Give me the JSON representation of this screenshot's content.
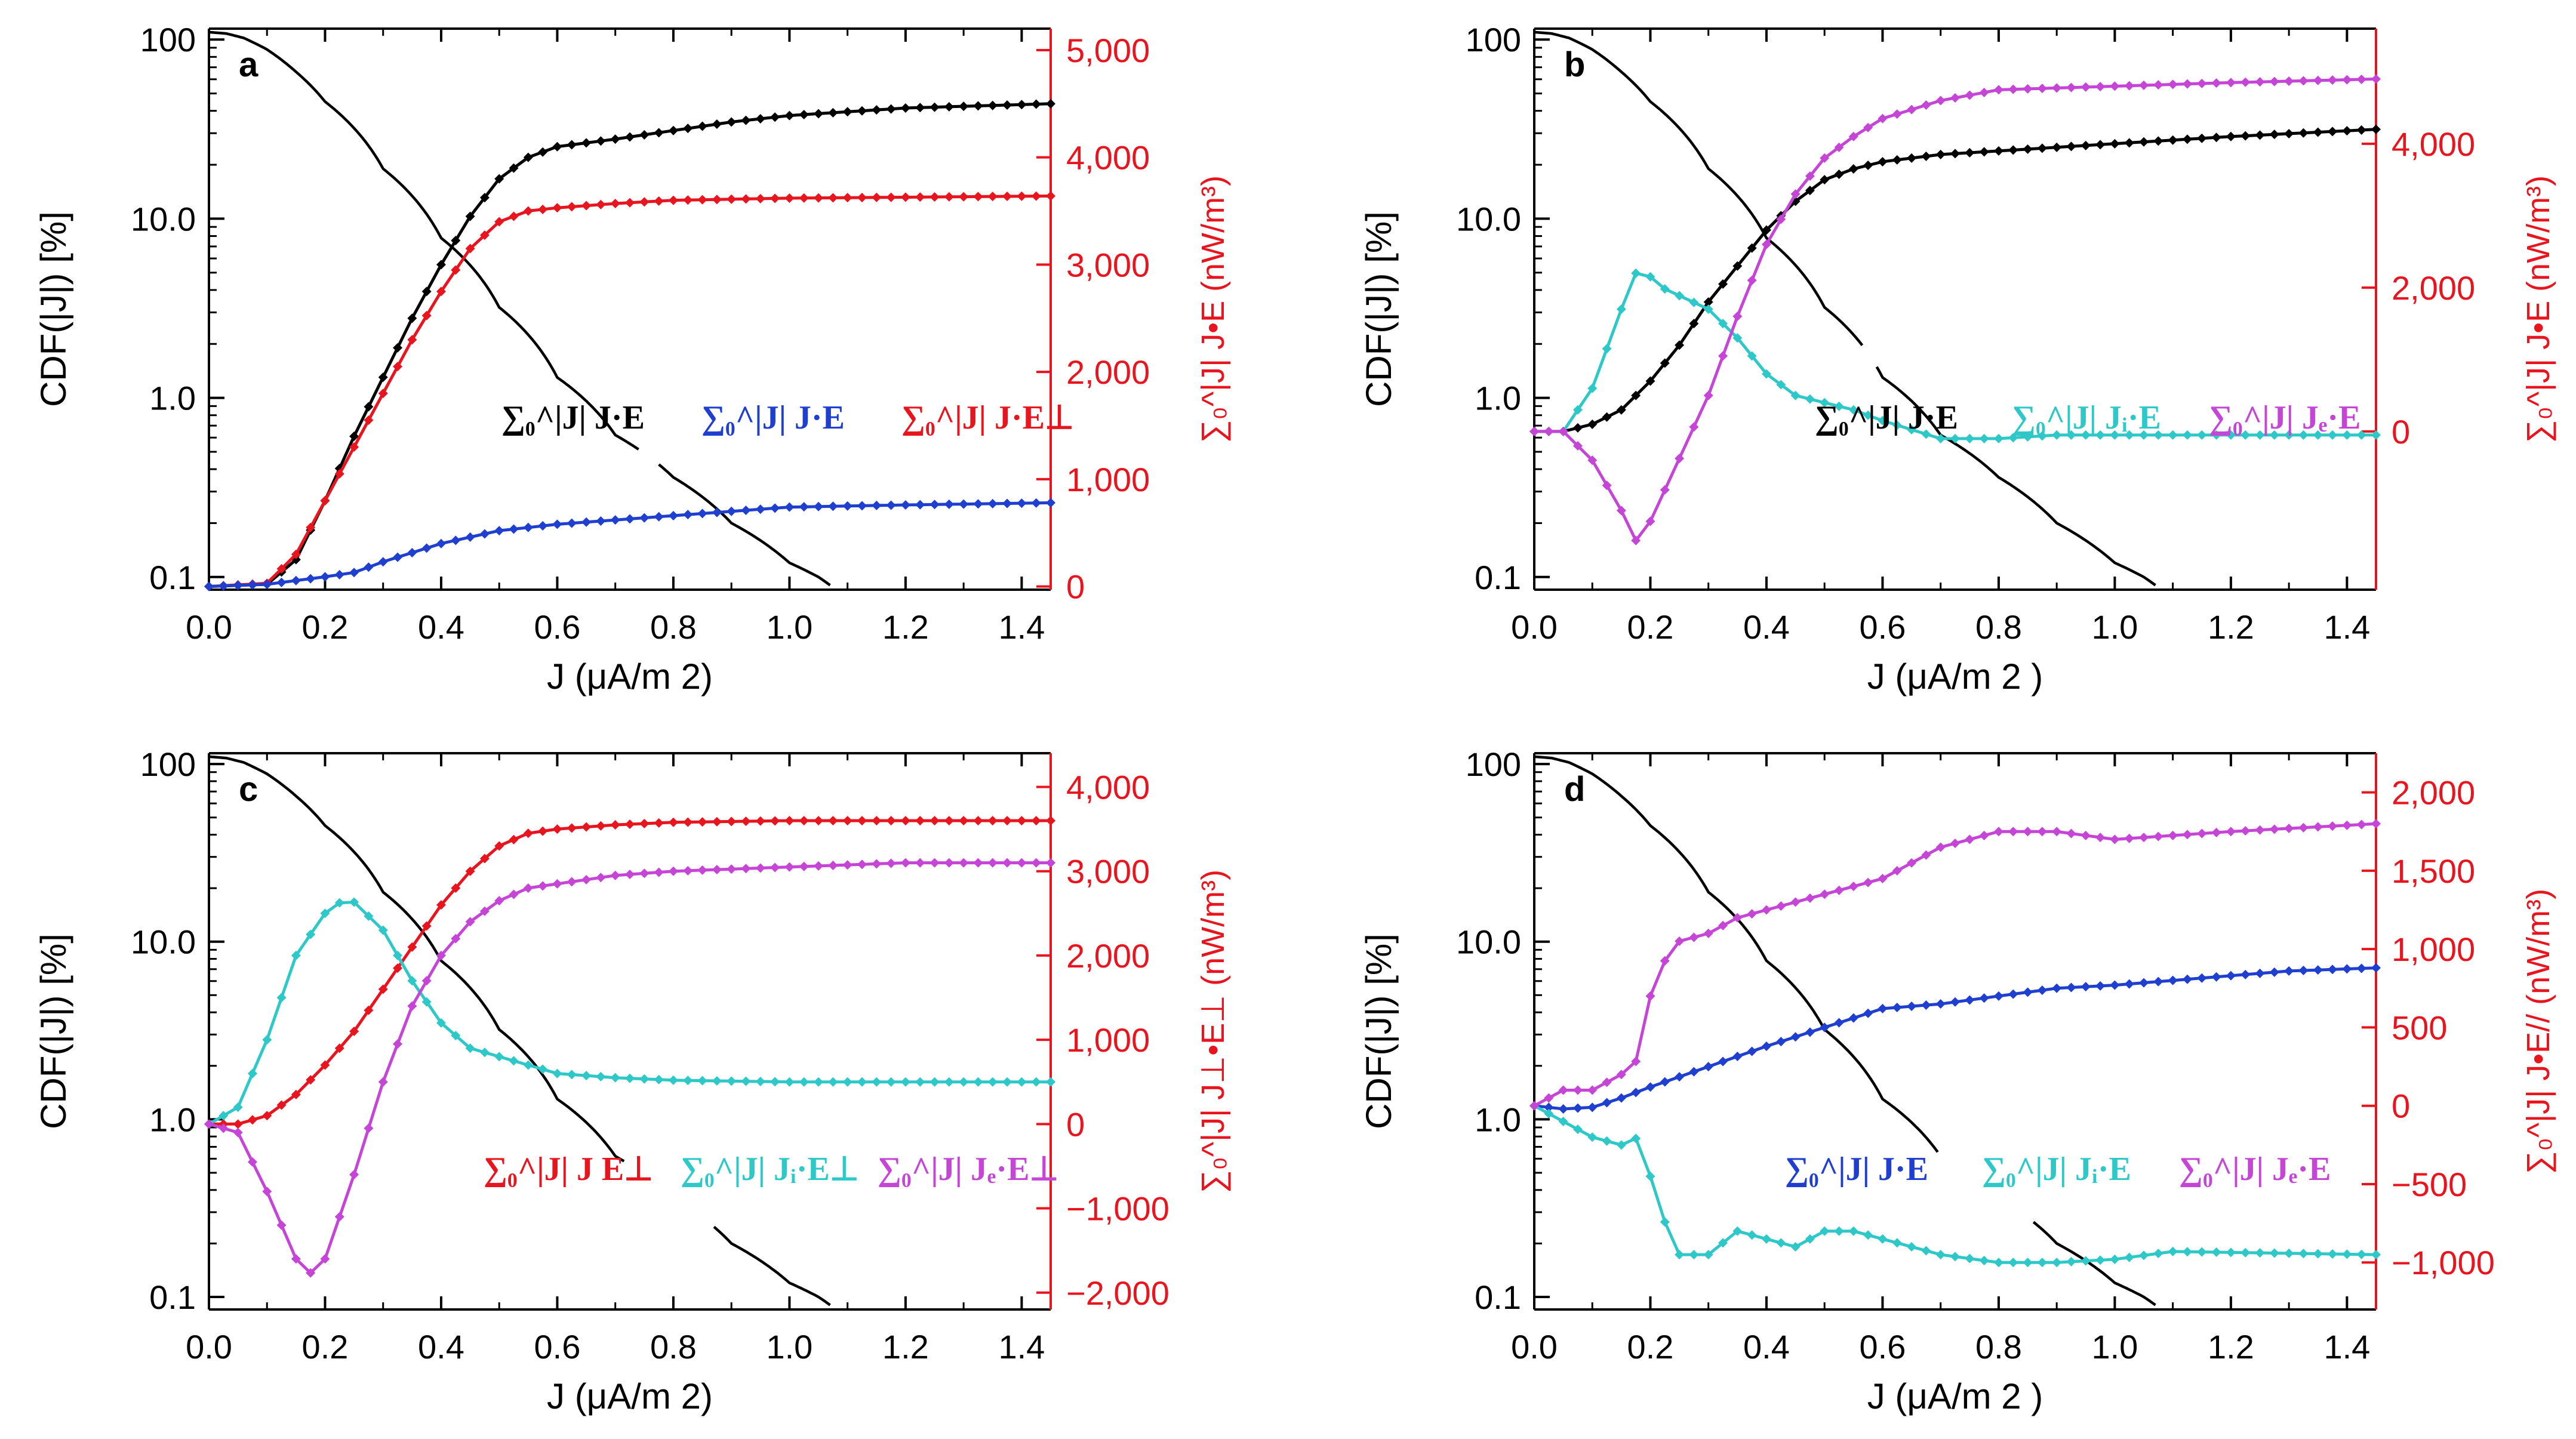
{
  "figure": {
    "background": "#ffffff"
  },
  "colors": {
    "black": "#000000",
    "blue": "#1f3fd0",
    "red": "#e8141e",
    "cyan": "#2ec8c8",
    "magenta": "#c546d6"
  },
  "chart_data": [
    {
      "panel": "a",
      "type": "line",
      "xlabel": "J (μA/m 2)",
      "ylabel": "CDF(|J|) [%]",
      "ylabel_right": "∑₀^|J| J•E  (nW/m³)",
      "xlim": [
        0,
        1.45
      ],
      "ylim_left": [
        0.085,
        115
      ],
      "ylim_right": [
        -30,
        5200
      ],
      "xticks": [
        "0.0",
        "0.2",
        "0.4",
        "0.6",
        "0.8",
        "1.0",
        "1.2",
        "1.4"
      ],
      "yticks_left": [
        "100",
        "10.0",
        "1.0",
        "0.1"
      ],
      "yticks_right": [
        "5,000",
        "4,000",
        "3,000",
        "2,000",
        "1,000",
        "0"
      ],
      "legend": [
        {
          "label": "∑₀^|J| J·E",
          "color": "black"
        },
        {
          "label": "∑₀^|J| J·E",
          "color": "blue"
        },
        {
          "label": "∑₀^|J| J·E⊥",
          "color": "red"
        }
      ],
      "series": [
        {
          "name": "CDF(|J|)",
          "color": "black",
          "axis": "left",
          "markers": false,
          "x": [
            0,
            0.03,
            0.06,
            0.1,
            0.15,
            0.2,
            0.3,
            0.4,
            0.5,
            0.6,
            0.7,
            0.8,
            0.9,
            1.0,
            1.05,
            1.07
          ],
          "y": [
            110,
            108,
            102,
            88,
            66,
            45,
            19,
            7.8,
            3.2,
            1.3,
            0.62,
            0.36,
            0.2,
            0.12,
            0.1,
            0.09
          ],
          "gaps": [
            [
              0.745,
              0.775
            ]
          ]
        },
        {
          "name": "∑₀^|J| J·E",
          "color": "black",
          "axis": "right",
          "markers": true,
          "x": [
            0,
            0.1,
            0.15,
            0.2,
            0.25,
            0.3,
            0.35,
            0.4,
            0.45,
            0.5,
            0.55,
            0.6,
            0.7,
            0.8,
            0.9,
            1.0,
            1.2,
            1.45
          ],
          "y": [
            0,
            20,
            250,
            800,
            1400,
            1950,
            2500,
            3000,
            3450,
            3800,
            4000,
            4100,
            4170,
            4250,
            4330,
            4390,
            4460,
            4500
          ]
        },
        {
          "name": "∑₀^|J| J·E⊥",
          "color": "red",
          "axis": "right",
          "markers": true,
          "x": [
            0,
            0.1,
            0.15,
            0.2,
            0.25,
            0.3,
            0.35,
            0.4,
            0.45,
            0.5,
            0.55,
            0.6,
            0.7,
            0.8,
            1.0,
            1.45
          ],
          "y": [
            0,
            30,
            300,
            800,
            1300,
            1800,
            2300,
            2750,
            3150,
            3400,
            3500,
            3530,
            3570,
            3600,
            3620,
            3640
          ]
        },
        {
          "name": "∑₀^|J| J·E (blue)",
          "color": "blue",
          "axis": "right",
          "markers": true,
          "x": [
            0,
            0.1,
            0.2,
            0.25,
            0.3,
            0.4,
            0.5,
            0.6,
            0.7,
            0.8,
            0.9,
            1.0,
            1.2,
            1.45
          ],
          "y": [
            0,
            20,
            90,
            130,
            230,
            400,
            520,
            580,
            620,
            660,
            700,
            740,
            760,
            780
          ]
        }
      ]
    },
    {
      "panel": "b",
      "type": "line",
      "xlabel": "J (μA/m 2 )",
      "ylabel": "CDF(|J|) [%]",
      "ylabel_right": "∑₀^|J| J•E  (nW/m³)",
      "xlim": [
        0,
        1.45
      ],
      "ylim_left": [
        0.085,
        115
      ],
      "ylim_right": [
        -2200,
        5600
      ],
      "xticks": [
        "0.0",
        "0.2",
        "0.4",
        "0.6",
        "0.8",
        "1.0",
        "1.2",
        "1.4"
      ],
      "yticks_left": [
        "100",
        "10.0",
        "1.0",
        "0.1"
      ],
      "yticks_right": [
        "4,000",
        "2,000",
        "0"
      ],
      "legend": [
        {
          "label": "∑₀^|J| J·E",
          "color": "black"
        },
        {
          "label": "∑₀^|J| Jᵢ·E",
          "color": "cyan"
        },
        {
          "label": "∑₀^|J| Jₑ·E",
          "color": "magenta"
        }
      ],
      "series": [
        {
          "name": "CDF(|J|)",
          "color": "black",
          "axis": "left",
          "markers": false,
          "x": [
            0,
            0.03,
            0.06,
            0.1,
            0.15,
            0.2,
            0.3,
            0.4,
            0.5,
            0.6,
            0.7,
            0.8,
            0.9,
            1.0,
            1.05,
            1.07
          ],
          "y": [
            110,
            108,
            102,
            88,
            66,
            45,
            19,
            7.8,
            3.2,
            1.3,
            0.62,
            0.36,
            0.2,
            0.12,
            0.1,
            0.09
          ],
          "gaps": [
            [
              0.57,
              0.59
            ]
          ]
        },
        {
          "name": "∑₀^|J| J·E",
          "color": "black",
          "axis": "right",
          "markers": true,
          "x": [
            0,
            0.05,
            0.1,
            0.15,
            0.2,
            0.25,
            0.3,
            0.35,
            0.4,
            0.45,
            0.5,
            0.55,
            0.6,
            0.7,
            0.8,
            1.0,
            1.2,
            1.45
          ],
          "y": [
            0,
            0,
            100,
            300,
            700,
            1200,
            1800,
            2300,
            2800,
            3200,
            3500,
            3650,
            3750,
            3850,
            3900,
            4000,
            4100,
            4200
          ]
        },
        {
          "name": "∑₀^|J| Jᵢ·E",
          "color": "cyan",
          "axis": "right",
          "markers": true,
          "x": [
            0,
            0.05,
            0.1,
            0.15,
            0.18,
            0.22,
            0.3,
            0.35,
            0.4,
            0.45,
            0.5,
            0.55,
            0.6,
            0.7,
            0.8,
            0.9,
            1.0,
            1.45
          ],
          "y": [
            0,
            0,
            600,
            1700,
            2300,
            2000,
            1700,
            1300,
            800,
            500,
            400,
            300,
            150,
            -100,
            -100,
            -50,
            -50,
            -50
          ]
        },
        {
          "name": "∑₀^|J| Jₑ·E",
          "color": "magenta",
          "axis": "right",
          "markers": true,
          "x": [
            0,
            0.05,
            0.1,
            0.15,
            0.18,
            0.22,
            0.3,
            0.35,
            0.4,
            0.45,
            0.5,
            0.55,
            0.6,
            0.7,
            0.8,
            1.0,
            1.2,
            1.45
          ],
          "y": [
            0,
            0,
            -400,
            -1100,
            -1600,
            -900,
            500,
            1600,
            2600,
            3300,
            3800,
            4100,
            4350,
            4600,
            4750,
            4800,
            4850,
            4900
          ]
        }
      ]
    },
    {
      "panel": "c",
      "type": "line",
      "xlabel": "J (μA/m 2)",
      "ylabel": "CDF(|J|) [%]",
      "ylabel_right": "∑₀^|J| J⊥•E⊥ (nW/m³)",
      "xlim": [
        0,
        1.45
      ],
      "ylim_left": [
        0.085,
        115
      ],
      "ylim_right": [
        -2200,
        4400
      ],
      "xticks": [
        "0.0",
        "0.2",
        "0.4",
        "0.6",
        "0.8",
        "1.0",
        "1.2",
        "1.4"
      ],
      "yticks_left": [
        "100",
        "10.0",
        "1.0",
        "0.1"
      ],
      "yticks_right": [
        "4,000",
        "3,000",
        "2,000",
        "1,000",
        "0",
        "−1,000",
        "−2,000"
      ],
      "legend": [
        {
          "label": "∑₀^|J| J E⊥",
          "color": "red"
        },
        {
          "label": "∑₀^|J| Jᵢ·E⊥",
          "color": "cyan"
        },
        {
          "label": "∑₀^|J| Jₑ·E⊥",
          "color": "magenta"
        }
      ],
      "series": [
        {
          "name": "CDF(|J|)",
          "color": "black",
          "axis": "left",
          "markers": false,
          "x": [
            0,
            0.03,
            0.06,
            0.1,
            0.15,
            0.2,
            0.3,
            0.4,
            0.5,
            0.6,
            0.7,
            0.8,
            0.9,
            1.0,
            1.05,
            1.07
          ],
          "y": [
            110,
            108,
            102,
            88,
            66,
            45,
            19,
            7.8,
            3.2,
            1.3,
            0.62,
            0.36,
            0.2,
            0.12,
            0.1,
            0.09
          ],
          "gaps": [
            [
              0.72,
              0.87
            ]
          ]
        },
        {
          "name": "∑₀^|J| J E⊥",
          "color": "red",
          "axis": "right",
          "markers": true,
          "x": [
            0,
            0.05,
            0.1,
            0.15,
            0.2,
            0.25,
            0.3,
            0.35,
            0.4,
            0.45,
            0.5,
            0.55,
            0.6,
            0.7,
            0.8,
            1.0,
            1.2,
            1.45
          ],
          "y": [
            0,
            0,
            100,
            350,
            700,
            1100,
            1600,
            2100,
            2600,
            3000,
            3300,
            3450,
            3500,
            3550,
            3580,
            3600,
            3600,
            3600
          ]
        },
        {
          "name": "∑₀^|J| Jᵢ·E⊥",
          "color": "cyan",
          "axis": "right",
          "markers": true,
          "x": [
            0,
            0.05,
            0.1,
            0.15,
            0.2,
            0.24,
            0.3,
            0.35,
            0.4,
            0.45,
            0.5,
            0.55,
            0.6,
            0.7,
            0.8,
            1.0,
            1.2,
            1.45
          ],
          "y": [
            0,
            200,
            1000,
            2000,
            2500,
            2700,
            2300,
            1700,
            1200,
            900,
            800,
            700,
            600,
            550,
            520,
            500,
            500,
            500
          ]
        },
        {
          "name": "∑₀^|J| Jₑ·E⊥",
          "color": "magenta",
          "axis": "right",
          "markers": true,
          "x": [
            0,
            0.05,
            0.1,
            0.15,
            0.17,
            0.2,
            0.25,
            0.3,
            0.35,
            0.4,
            0.45,
            0.5,
            0.55,
            0.6,
            0.7,
            0.8,
            1.0,
            1.2,
            1.45
          ],
          "y": [
            0,
            -100,
            -800,
            -1600,
            -1800,
            -1600,
            -600,
            500,
            1400,
            2000,
            2400,
            2650,
            2800,
            2850,
            2950,
            3000,
            3050,
            3100,
            3100
          ]
        }
      ]
    },
    {
      "panel": "d",
      "type": "line",
      "xlabel": "J (μA/m 2 )",
      "ylabel": "CDF(|J|) [%]",
      "ylabel_right": "∑₀^|J| J•E// (nW/m³)",
      "xlim": [
        0,
        1.45
      ],
      "ylim_left": [
        0.085,
        115
      ],
      "ylim_right": [
        -1300,
        2250
      ],
      "xticks": [
        "0.0",
        "0.2",
        "0.4",
        "0.6",
        "0.8",
        "1.0",
        "1.2",
        "1.4"
      ],
      "yticks_left": [
        "100",
        "10.0",
        "1.0",
        "0.1"
      ],
      "yticks_right": [
        "2,000",
        "1,500",
        "1,000",
        "500",
        "0",
        "−500",
        "−1,000"
      ],
      "legend": [
        {
          "label": "∑₀^|J| J·E",
          "color": "blue"
        },
        {
          "label": "∑₀^|J| Jᵢ·E",
          "color": "cyan"
        },
        {
          "label": "∑₀^|J| Jₑ·E",
          "color": "magenta"
        }
      ],
      "series": [
        {
          "name": "CDF(|J|)",
          "color": "black",
          "axis": "left",
          "markers": false,
          "x": [
            0,
            0.03,
            0.06,
            0.1,
            0.15,
            0.2,
            0.3,
            0.4,
            0.5,
            0.6,
            0.7,
            0.8,
            0.9,
            1.0,
            1.05,
            1.07
          ],
          "y": [
            110,
            108,
            102,
            88,
            66,
            45,
            19,
            7.8,
            3.2,
            1.3,
            0.62,
            0.36,
            0.2,
            0.12,
            0.1,
            0.09
          ],
          "gaps": [
            [
              0.7,
              0.86
            ]
          ]
        },
        {
          "name": "∑₀^|J| J·E",
          "color": "blue",
          "axis": "right",
          "markers": true,
          "x": [
            0,
            0.05,
            0.1,
            0.15,
            0.2,
            0.3,
            0.4,
            0.5,
            0.6,
            0.7,
            0.8,
            0.9,
            1.0,
            1.1,
            1.2,
            1.3,
            1.45
          ],
          "y": [
            0,
            -20,
            -10,
            50,
            120,
            250,
            380,
            500,
            620,
            650,
            700,
            750,
            770,
            800,
            830,
            860,
            880
          ]
        },
        {
          "name": "∑₀^|J| Jᵢ·E",
          "color": "cyan",
          "axis": "right",
          "markers": true,
          "x": [
            0,
            0.05,
            0.1,
            0.15,
            0.18,
            0.22,
            0.25,
            0.3,
            0.35,
            0.4,
            0.45,
            0.5,
            0.55,
            0.6,
            0.7,
            0.8,
            0.9,
            1.0,
            1.1,
            1.45
          ],
          "y": [
            0,
            -100,
            -200,
            -250,
            -200,
            -700,
            -950,
            -950,
            -800,
            -850,
            -900,
            -800,
            -800,
            -850,
            -950,
            -1000,
            -1000,
            -980,
            -930,
            -950
          ]
        },
        {
          "name": "∑₀^|J| Jₑ·E",
          "color": "magenta",
          "axis": "right",
          "markers": true,
          "x": [
            0,
            0.05,
            0.1,
            0.15,
            0.18,
            0.2,
            0.22,
            0.25,
            0.3,
            0.35,
            0.4,
            0.45,
            0.5,
            0.6,
            0.7,
            0.8,
            0.9,
            1.0,
            1.2,
            1.45
          ],
          "y": [
            0,
            100,
            100,
            200,
            300,
            700,
            900,
            1050,
            1100,
            1200,
            1250,
            1300,
            1350,
            1450,
            1650,
            1750,
            1750,
            1700,
            1750,
            1800
          ]
        }
      ]
    }
  ]
}
